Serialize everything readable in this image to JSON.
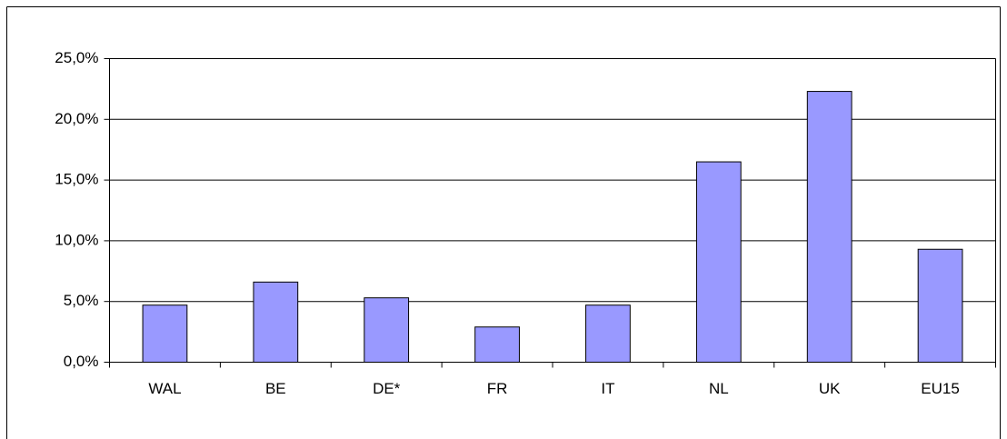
{
  "chart_data": {
    "type": "bar",
    "categories": [
      "WAL",
      "BE",
      "DE*",
      "FR",
      "IT",
      "NL",
      "UK",
      "EU15"
    ],
    "values": [
      4.7,
      6.6,
      5.3,
      2.9,
      4.7,
      16.5,
      22.3,
      9.3
    ],
    "color": "#9999ff",
    "ylim": [
      0,
      25
    ],
    "yticks": [
      {
        "value": 0,
        "label": "0,0%"
      },
      {
        "value": 5,
        "label": "5,0%"
      },
      {
        "value": 10,
        "label": "10,0%"
      },
      {
        "value": 15,
        "label": "15,0%"
      },
      {
        "value": 20,
        "label": "20,0%"
      },
      {
        "value": 25,
        "label": "25,0%"
      }
    ],
    "grid": true
  }
}
